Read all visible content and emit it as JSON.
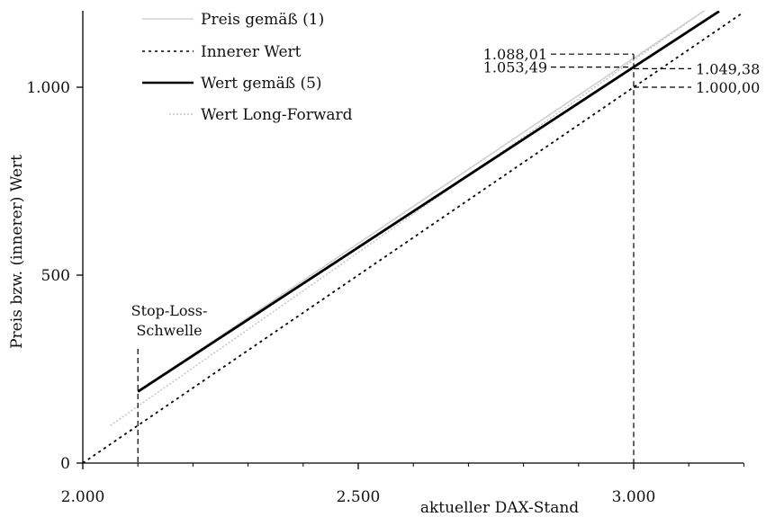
{
  "chart_data": {
    "type": "line",
    "xlabel": "aktueller DAX-Stand",
    "ylabel": "Preis bzw. (innerer) Wert",
    "xlim": [
      2000,
      3200
    ],
    "ylim": [
      0,
      1200
    ],
    "x_ticks": [
      {
        "value": 2000,
        "label": "2.000"
      },
      {
        "value": 2500,
        "label": "2.500"
      },
      {
        "value": 3000,
        "label": "3.000"
      }
    ],
    "y_ticks": [
      {
        "value": 0,
        "label": "0"
      },
      {
        "value": 500,
        "label": "500"
      },
      {
        "value": 1000,
        "label": "1.000"
      }
    ],
    "grid": false,
    "legend_position": "top-left",
    "series": [
      {
        "name": "Preis gemäß (1)",
        "style": "solid-light",
        "color": "#c8c8c8",
        "x": [
          2100,
          3160
        ],
        "y": [
          190,
          1235
        ]
      },
      {
        "name": "Innerer Wert",
        "style": "dotted",
        "color": "#000000",
        "x": [
          2000,
          3200
        ],
        "y": [
          0,
          1200
        ]
      },
      {
        "name": "Wert gemäß (5)",
        "style": "solid-bold",
        "color": "#000000",
        "x": [
          2100,
          3000,
          3155
        ],
        "y": [
          190,
          1053.49,
          1202
        ]
      },
      {
        "name": "Wert Long-Forward",
        "style": "dotted-light",
        "color": "#bdbdbd",
        "x": [
          2050,
          3160
        ],
        "y": [
          100,
          1236
        ]
      }
    ],
    "annotations": [
      {
        "text": "1.088,01",
        "x": 3000,
        "y": 1088.01,
        "side": "left"
      },
      {
        "text": "1.053,49",
        "x": 3000,
        "y": 1053.49,
        "side": "left"
      },
      {
        "text": "1.049,38",
        "x": 3000,
        "y": 1049.38,
        "side": "right"
      },
      {
        "text": "1.000,00",
        "x": 3000,
        "y": 1000.0,
        "side": "right"
      }
    ],
    "stop_loss": {
      "label_line1": "Stop-Loss-",
      "label_line2": "Schwelle",
      "x": 2100
    }
  }
}
